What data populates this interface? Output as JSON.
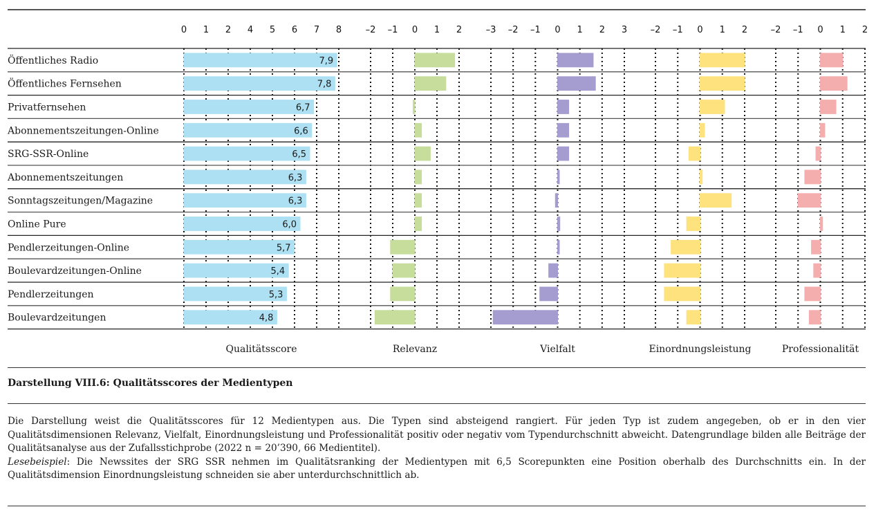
{
  "chart_data": {
    "type": "bar",
    "orientation": "horizontal",
    "categories": [
      "Öffentliches Radio",
      "Öffentliches Fernsehen",
      "Privatfernsehen",
      "Abonnementszeitungen-Online",
      "SRG-SSR-Online",
      "Abonnementszeitungen",
      "Sonntagszeitungen/Magazine",
      "Online Pure",
      "Pendlerzeitungen-Online",
      "Boulevardzeitungen-Online",
      "Pendlerzeitungen",
      "Boulevardzeitungen"
    ],
    "panels": [
      {
        "name": "Qualitätsscore",
        "color": "#ade0f2",
        "tick_labels": [
          "0",
          "1",
          "2",
          "4",
          "5",
          "6",
          "7",
          "8"
        ],
        "xlim": [
          0,
          8
        ],
        "show_values": true,
        "values": [
          7.9,
          7.8,
          6.7,
          6.6,
          6.5,
          6.3,
          6.3,
          6.0,
          5.7,
          5.4,
          5.3,
          4.8
        ],
        "value_labels": [
          "7,9",
          "7,8",
          "6,7",
          "6,6",
          "6,5",
          "6,3",
          "6,3",
          "6,0",
          "5,7",
          "5,4",
          "5,3",
          "4,8"
        ]
      },
      {
        "name": "Relevanz",
        "color": "#c6dd9c",
        "tick_labels": [
          "–2",
          "–1",
          "0",
          "1",
          "2"
        ],
        "xlim": [
          -2,
          2
        ],
        "values": [
          1.8,
          1.4,
          -0.05,
          0.3,
          0.7,
          0.3,
          0.3,
          0.3,
          -1.1,
          -1.0,
          -1.1,
          -1.8
        ]
      },
      {
        "name": "Vielfalt",
        "color": "#a59ccf",
        "tick_labels": [
          "–3",
          "–2",
          "–1",
          "0",
          "1",
          "2",
          "3"
        ],
        "xlim": [
          -3,
          3
        ],
        "values": [
          1.6,
          1.7,
          0.5,
          0.5,
          0.5,
          0.05,
          -0.1,
          0.1,
          0.05,
          -0.4,
          -0.8,
          -2.9
        ]
      },
      {
        "name": "Einordnungsleistung",
        "color": "#fde27e",
        "tick_labels": [
          "–2",
          "–1",
          "0",
          "1",
          "2"
        ],
        "xlim": [
          -2,
          2
        ],
        "values": [
          2.0,
          2.0,
          1.1,
          0.2,
          -0.5,
          0.1,
          1.4,
          -0.6,
          -1.3,
          -1.6,
          -1.6,
          -0.6
        ]
      },
      {
        "name": "Professionalität",
        "color": "#f4aeae",
        "tick_labels": [
          "–2",
          "–1",
          "0",
          "1",
          "2"
        ],
        "xlim": [
          -2,
          2
        ],
        "values": [
          1.0,
          1.2,
          0.7,
          0.2,
          -0.2,
          -0.7,
          -1.0,
          0.1,
          -0.4,
          -0.3,
          -0.7,
          -0.5
        ]
      }
    ],
    "title": "Darstellung VIII.6: Qualitätsscores der Medientypen",
    "grid": "dotted vertical at each tick",
    "legend": "none (panel labels below each panel)"
  },
  "caption": {
    "title": "Darstellung VIII.6: Qualitätsscores der Medientypen",
    "paragraph": "Die Darstellung weist die Qualitätsscores für 12 Medientypen aus. Die Typen sind absteigend rangiert. Für jeden Typ ist zudem angegeben, ob er in den vier Qualitätsdimensionen Relevanz, Vielfalt, Einordnungsleistung und Professionalität positiv oder negativ vom Typendurchschnitt abweicht. Datengrundlage bilden alle Beiträge der Qualitätsanalyse aus der Zufallsstichprobe (2022 n = 20’390, 66 Medientitel).",
    "example_label": "Lesebeispiel",
    "example_text": ": Die Newssites der SRG SSR nehmen im Qualitätsranking der Medientypen mit 6,5 Scorepunkten eine Position oberhalb des Durchschnitts ein. In der Qualitätsdimension Einordnungsleistung schneiden sie aber unterdurchschnittlich ab."
  }
}
